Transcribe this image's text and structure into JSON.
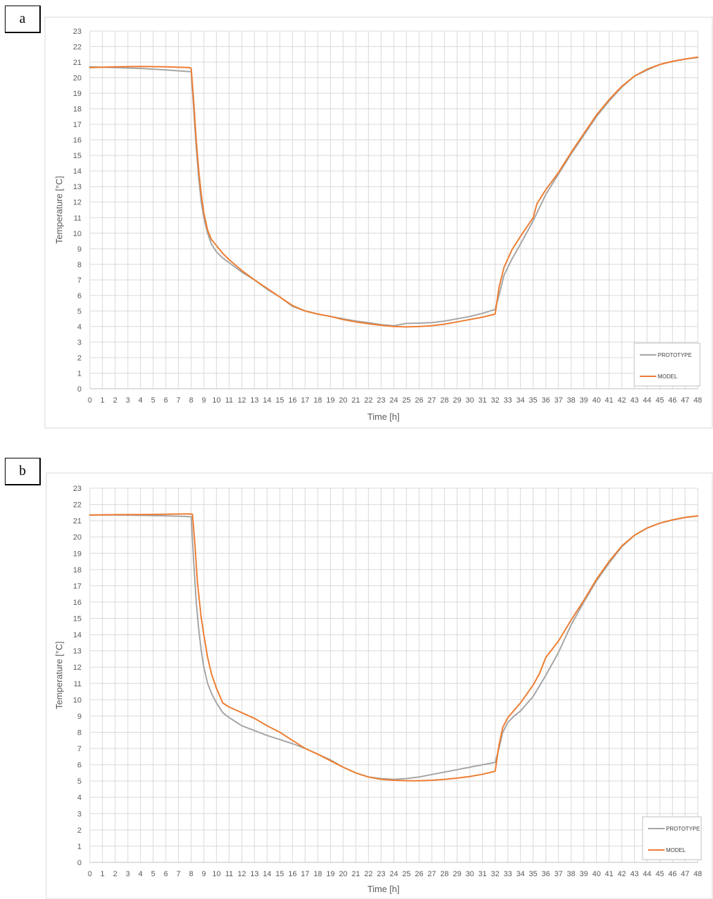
{
  "chart_data": [
    {
      "panel_label": "a",
      "type": "line",
      "xlabel": "Time [h]",
      "ylabel": "Temperature [°C]",
      "xlim": [
        0,
        48
      ],
      "ylim": [
        0,
        23
      ],
      "grid": true,
      "legend_position": "bottom-right",
      "series": [
        {
          "name": "PROTOTYPE",
          "color": "#a5a5a5",
          "points": [
            [
              0,
              20.7
            ],
            [
              2,
              20.65
            ],
            [
              4,
              20.6
            ],
            [
              6,
              20.5
            ],
            [
              7.8,
              20.4
            ],
            [
              8,
              20.4
            ],
            [
              8.2,
              18
            ],
            [
              8.4,
              15.5
            ],
            [
              8.6,
              13.5
            ],
            [
              8.8,
              12
            ],
            [
              9,
              11
            ],
            [
              9.3,
              10
            ],
            [
              9.6,
              9.3
            ],
            [
              10,
              8.8
            ],
            [
              10.5,
              8.4
            ],
            [
              11,
              8.1
            ],
            [
              12,
              7.5
            ],
            [
              13,
              7.0
            ],
            [
              14,
              6.4
            ],
            [
              15,
              5.9
            ],
            [
              16,
              5.3
            ],
            [
              17,
              5.0
            ],
            [
              18,
              4.8
            ],
            [
              19,
              4.65
            ],
            [
              20,
              4.5
            ],
            [
              21,
              4.35
            ],
            [
              22,
              4.25
            ],
            [
              23,
              4.12
            ],
            [
              24,
              4.05
            ],
            [
              25,
              4.2
            ],
            [
              26,
              4.22
            ],
            [
              27,
              4.25
            ],
            [
              28,
              4.35
            ],
            [
              29,
              4.5
            ],
            [
              30,
              4.65
            ],
            [
              31,
              4.85
            ],
            [
              32,
              5.1
            ],
            [
              32.3,
              6.0
            ],
            [
              32.7,
              7.3
            ],
            [
              33.3,
              8.3
            ],
            [
              34,
              9.3
            ],
            [
              35,
              10.8
            ],
            [
              36,
              12.5
            ],
            [
              37,
              13.8
            ],
            [
              38,
              15.1
            ],
            [
              39,
              16.3
            ],
            [
              40,
              17.5
            ],
            [
              41,
              18.5
            ],
            [
              42,
              19.4
            ],
            [
              43,
              20.1
            ],
            [
              44,
              20.5
            ],
            [
              45,
              20.85
            ],
            [
              46,
              21.05
            ],
            [
              47,
              21.2
            ],
            [
              48,
              21.3
            ]
          ]
        },
        {
          "name": "MODEL",
          "color": "#ed7d31",
          "points": [
            [
              0,
              20.65
            ],
            [
              2,
              20.7
            ],
            [
              4,
              20.72
            ],
            [
              6,
              20.7
            ],
            [
              7.9,
              20.65
            ],
            [
              8,
              20.6
            ],
            [
              8.2,
              18.5
            ],
            [
              8.4,
              16
            ],
            [
              8.6,
              14
            ],
            [
              8.8,
              12.5
            ],
            [
              9,
              11.3
            ],
            [
              9.3,
              10.2
            ],
            [
              9.6,
              9.6
            ],
            [
              10,
              9.2
            ],
            [
              10.5,
              8.7
            ],
            [
              11,
              8.3
            ],
            [
              12,
              7.6
            ],
            [
              13,
              7.0
            ],
            [
              14,
              6.45
            ],
            [
              15,
              5.9
            ],
            [
              16,
              5.35
            ],
            [
              17,
              5.0
            ],
            [
              18,
              4.8
            ],
            [
              19,
              4.65
            ],
            [
              20,
              4.45
            ],
            [
              21,
              4.3
            ],
            [
              22,
              4.18
            ],
            [
              23,
              4.08
            ],
            [
              24,
              4.0
            ],
            [
              25,
              3.98
            ],
            [
              26,
              4.0
            ],
            [
              27,
              4.05
            ],
            [
              28,
              4.15
            ],
            [
              29,
              4.3
            ],
            [
              30,
              4.45
            ],
            [
              31,
              4.6
            ],
            [
              32,
              4.8
            ],
            [
              32.3,
              6.5
            ],
            [
              32.7,
              7.8
            ],
            [
              33.3,
              8.9
            ],
            [
              34,
              9.8
            ],
            [
              35,
              11.0
            ],
            [
              35.3,
              11.9
            ],
            [
              36,
              12.8
            ],
            [
              37,
              13.9
            ],
            [
              38,
              15.2
            ],
            [
              39,
              16.4
            ],
            [
              40,
              17.6
            ],
            [
              41,
              18.6
            ],
            [
              42,
              19.45
            ],
            [
              43,
              20.1
            ],
            [
              44,
              20.55
            ],
            [
              45,
              20.85
            ],
            [
              46,
              21.05
            ],
            [
              47,
              21.2
            ],
            [
              48,
              21.32
            ]
          ]
        }
      ]
    },
    {
      "panel_label": "b",
      "type": "line",
      "xlabel": "Time [h]",
      "ylabel": "Temperature [°C]",
      "xlim": [
        0,
        48
      ],
      "ylim": [
        0,
        23
      ],
      "grid": true,
      "legend_position": "bottom-right",
      "series": [
        {
          "name": "PROTOTYPE",
          "color": "#a5a5a5",
          "points": [
            [
              0,
              21.35
            ],
            [
              2,
              21.35
            ],
            [
              4,
              21.33
            ],
            [
              6,
              21.3
            ],
            [
              7.9,
              21.25
            ],
            [
              8,
              21.25
            ],
            [
              8.2,
              18.5
            ],
            [
              8.4,
              16
            ],
            [
              8.6,
              14.3
            ],
            [
              8.8,
              13
            ],
            [
              9,
              12
            ],
            [
              9.3,
              11
            ],
            [
              9.6,
              10.4
            ],
            [
              10,
              9.8
            ],
            [
              10.5,
              9.2
            ],
            [
              11,
              8.9
            ],
            [
              12,
              8.4
            ],
            [
              13,
              8.1
            ],
            [
              14,
              7.8
            ],
            [
              15,
              7.55
            ],
            [
              16,
              7.3
            ],
            [
              17,
              7.0
            ],
            [
              18,
              6.65
            ],
            [
              19,
              6.3
            ],
            [
              20,
              5.85
            ],
            [
              21,
              5.5
            ],
            [
              22,
              5.25
            ],
            [
              23,
              5.15
            ],
            [
              24,
              5.1
            ],
            [
              25,
              5.15
            ],
            [
              26,
              5.25
            ],
            [
              27,
              5.4
            ],
            [
              28,
              5.55
            ],
            [
              29,
              5.7
            ],
            [
              30,
              5.85
            ],
            [
              31,
              6.0
            ],
            [
              32,
              6.15
            ],
            [
              32.3,
              7.0
            ],
            [
              32.6,
              8.0
            ],
            [
              33,
              8.6
            ],
            [
              33.5,
              9.0
            ],
            [
              34,
              9.3
            ],
            [
              35,
              10.2
            ],
            [
              36,
              11.5
            ],
            [
              37,
              12.9
            ],
            [
              38,
              14.6
            ],
            [
              39,
              16.0
            ],
            [
              40,
              17.3
            ],
            [
              41,
              18.4
            ],
            [
              42,
              19.4
            ],
            [
              43,
              20.1
            ],
            [
              44,
              20.55
            ],
            [
              45,
              20.85
            ],
            [
              46,
              21.05
            ],
            [
              47,
              21.2
            ],
            [
              48,
              21.3
            ]
          ]
        },
        {
          "name": "MODEL",
          "color": "#ed7d31",
          "points": [
            [
              0,
              21.35
            ],
            [
              2,
              21.37
            ],
            [
              4,
              21.38
            ],
            [
              6,
              21.4
            ],
            [
              7.9,
              21.42
            ],
            [
              8.1,
              21.4
            ],
            [
              8.3,
              19.5
            ],
            [
              8.5,
              17.2
            ],
            [
              8.8,
              15
            ],
            [
              9,
              14
            ],
            [
              9.3,
              12.6
            ],
            [
              9.6,
              11.6
            ],
            [
              10,
              10.7
            ],
            [
              10.5,
              9.8
            ],
            [
              11,
              9.55
            ],
            [
              12,
              9.2
            ],
            [
              13,
              8.85
            ],
            [
              14,
              8.4
            ],
            [
              15,
              8.0
            ],
            [
              16,
              7.5
            ],
            [
              17,
              7.0
            ],
            [
              18,
              6.65
            ],
            [
              19,
              6.25
            ],
            [
              20,
              5.85
            ],
            [
              21,
              5.5
            ],
            [
              22,
              5.25
            ],
            [
              23,
              5.1
            ],
            [
              24,
              5.05
            ],
            [
              25,
              5.02
            ],
            [
              26,
              5.02
            ],
            [
              27,
              5.05
            ],
            [
              28,
              5.1
            ],
            [
              29,
              5.18
            ],
            [
              30,
              5.28
            ],
            [
              31,
              5.42
            ],
            [
              32,
              5.6
            ],
            [
              32.3,
              7.2
            ],
            [
              32.6,
              8.3
            ],
            [
              33,
              8.9
            ],
            [
              34,
              9.8
            ],
            [
              35,
              10.9
            ],
            [
              35.5,
              11.6
            ],
            [
              36,
              12.6
            ],
            [
              37,
              13.6
            ],
            [
              38,
              14.9
            ],
            [
              39,
              16.1
            ],
            [
              40,
              17.4
            ],
            [
              41,
              18.5
            ],
            [
              42,
              19.45
            ],
            [
              43,
              20.1
            ],
            [
              44,
              20.55
            ],
            [
              45,
              20.85
            ],
            [
              46,
              21.05
            ],
            [
              47,
              21.2
            ],
            [
              48,
              21.3
            ]
          ]
        }
      ]
    }
  ]
}
